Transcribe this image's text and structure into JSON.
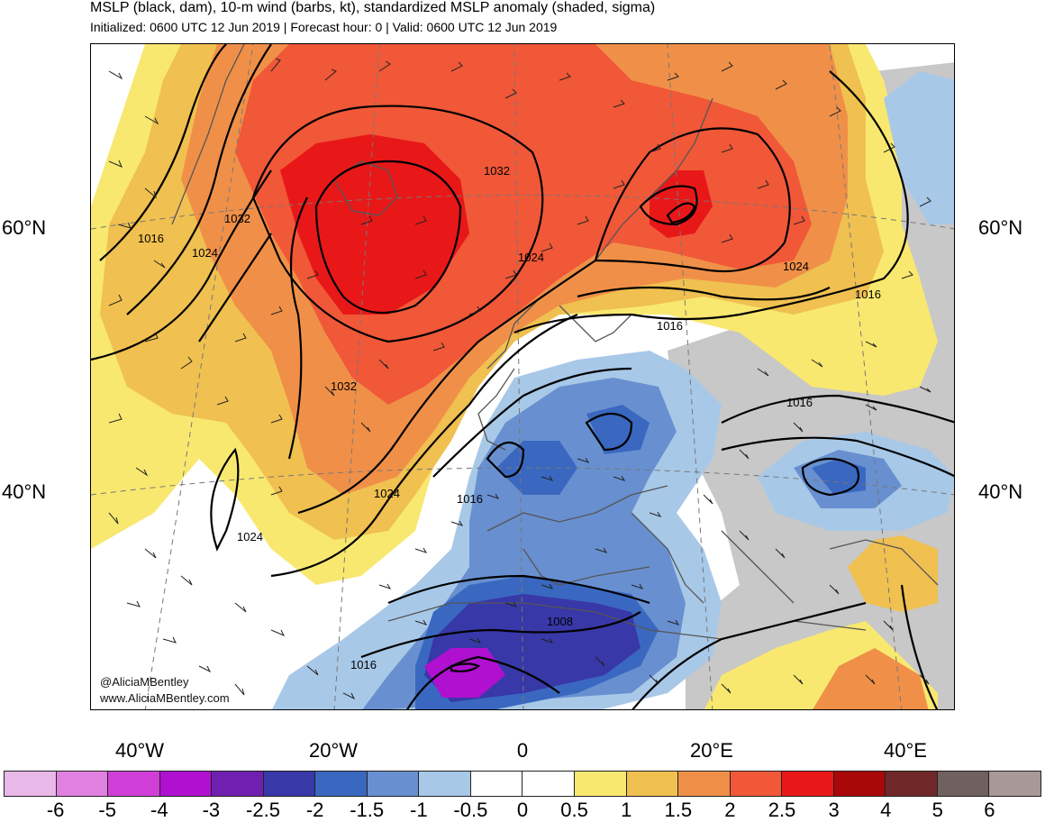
{
  "title": "MSLP (black, dam), 10-m wind (barbs, kt), standardized MSLP anomaly (shaded, sigma)",
  "subtitle": "Initialized: 0600 UTC 12 Jun 2019 | Forecast hour: 0 | Valid: 0600 UTC 12 Jun 2019",
  "credit": {
    "handle": "@AliciaMBentley",
    "website": "www.AliciaMBentley.com"
  },
  "axes": {
    "lat_left": [
      "60°N",
      "40°N"
    ],
    "lat_right": [
      "60°N",
      "40°N"
    ],
    "lon": [
      "40°W",
      "20°W",
      "0",
      "20°E",
      "40°E"
    ]
  },
  "contour_labels": [
    "1016",
    "1024",
    "1032",
    "1032",
    "1032",
    "1024",
    "1024",
    "1016",
    "1016",
    "1016",
    "1024",
    "1024",
    "1016",
    "1008",
    "1016"
  ],
  "colorbar": {
    "colors": [
      "#e8b8e8",
      "#e080e0",
      "#d040d8",
      "#b010d0",
      "#7020b0",
      "#3838a8",
      "#3a68c0",
      "#6890d0",
      "#a8c8e8",
      "#ffffff",
      "#ffffff",
      "#f8e870",
      "#f0c050",
      "#f09048",
      "#f05838",
      "#e81818",
      "#a80808",
      "#702828",
      "#706060",
      "#a89898"
    ],
    "labels": [
      "-6",
      "-5",
      "-4",
      "-3",
      "-2.5",
      "-2",
      "-1.5",
      "-1",
      "-0.5",
      "0",
      "0.5",
      "1",
      "1.5",
      "2",
      "2.5",
      "3",
      "4",
      "5",
      "6"
    ]
  },
  "shading_colors": {
    "pos_05": "#f8e870",
    "pos_1": "#f0c050",
    "pos_15": "#f09048",
    "pos_2": "#f05838",
    "pos_25": "#e81818",
    "neg_05": "#a8c8e8",
    "neg_1": "#6890d0",
    "neg_15": "#3a68c0",
    "neg_2": "#3838a8",
    "neg_3": "#b010d0",
    "land_gray": "#c8c8c8",
    "coast": "#555555",
    "contour": "#000000"
  }
}
